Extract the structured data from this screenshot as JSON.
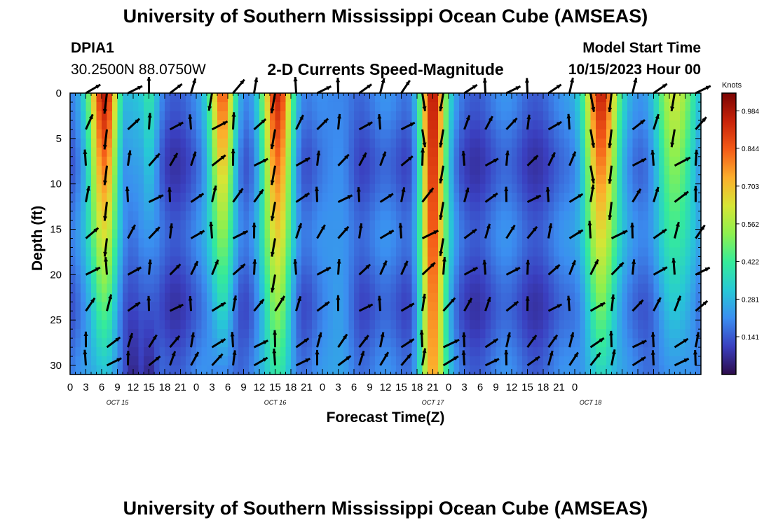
{
  "page": {
    "title_top": "University of Southern Mississippi Ocean Cube (AMSEAS)",
    "title_bottom": "University of Southern Mississippi Ocean Cube (AMSEAS)"
  },
  "station": {
    "id": "DPIA1",
    "coords": "30.2500N  88.0750W"
  },
  "model": {
    "label": "Model Start Time",
    "start": "10/15/2023 Hour 00"
  },
  "chart_data": {
    "type": "heatmap",
    "title": "2-D Currents Speed-Magnitude",
    "xlabel": "Forecast Time(Z)",
    "ylabel": "Depth (ft)",
    "x_ticks": [
      "0",
      "3",
      "6",
      "9",
      "12",
      "15",
      "18",
      "21",
      "0",
      "3",
      "6",
      "9",
      "12",
      "15",
      "18",
      "21",
      "0",
      "3",
      "6",
      "9",
      "12",
      "15",
      "18",
      "21",
      "0",
      "3",
      "6",
      "9",
      "12",
      "15",
      "18",
      "21",
      "0"
    ],
    "date_labels": [
      {
        "label": "OCT 15",
        "hour": 9
      },
      {
        "label": "OCT 16",
        "hour": 39
      },
      {
        "label": "OCT 17",
        "hour": 69
      },
      {
        "label": "OCT 18",
        "hour": 99
      }
    ],
    "xlim_hours": [
      0,
      120
    ],
    "y_ticks": [
      "0",
      "5",
      "10",
      "15",
      "20",
      "25",
      "30"
    ],
    "ylim_ft": [
      0,
      31
    ],
    "colorbar": {
      "unit": "Knots",
      "min": 0.0,
      "max": 1.05,
      "tick_values": [
        0.984,
        0.844,
        0.703,
        0.562,
        0.422,
        0.281,
        0.141
      ],
      "tick_labels": [
        "0.984",
        "0.844",
        "0.703",
        "0.562",
        "0.422",
        "0.281",
        "0.141"
      ]
    },
    "speed_field_knots": {
      "description": "approximate current speed by time column (hours) and depth (ft)",
      "columns": [
        {
          "hours": [
            4,
            9
          ],
          "surface": 0.98,
          "bottom": 0.3
        },
        {
          "hours": [
            11,
            13
          ],
          "surface": 0.3,
          "bottom": 0.05
        },
        {
          "hours": [
            14,
            16
          ],
          "surface": 0.4,
          "bottom": 0.05
        },
        {
          "hours": [
            27,
            31
          ],
          "surface": 0.85,
          "bottom": 0.2
        },
        {
          "hours": [
            37,
            42
          ],
          "surface": 0.95,
          "bottom": 0.4
        },
        {
          "hours": [
            48,
            54
          ],
          "surface": 0.2,
          "bottom": 0.25
        },
        {
          "hours": [
            67,
            71
          ],
          "surface": 0.98,
          "bottom": 0.75
        },
        {
          "hours": [
            98,
            104
          ],
          "surface": 0.96,
          "bottom": 0.35
        },
        {
          "hours": [
            111,
            119
          ],
          "surface": 0.62,
          "bottom": 0.22
        }
      ]
    },
    "vector_rows_ft": [
      0,
      4,
      8,
      12,
      16,
      20,
      24,
      28,
      30
    ],
    "vector_hour_step": 4,
    "background_speed_knots": 0.15
  },
  "colors": {
    "axis": "#000000",
    "arrow": "#000000",
    "colormap": [
      "#2d0c4b",
      "#3a3fbf",
      "#3b8ef0",
      "#27c8d6",
      "#35eb9a",
      "#8df04f",
      "#d6e535",
      "#fcae2c",
      "#f45b17",
      "#c8230a",
      "#7a0403"
    ]
  }
}
